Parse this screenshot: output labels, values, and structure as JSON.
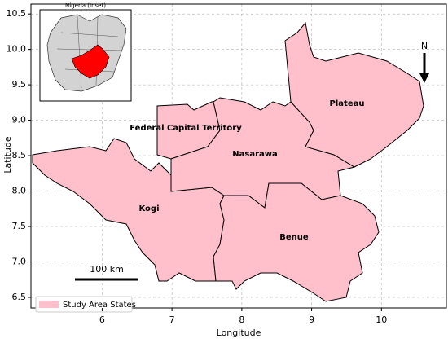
{
  "chart_data": {
    "type": "map",
    "xlabel": "Longitude",
    "ylabel": "Latitude",
    "xlim": [
      4.98,
      10.93
    ],
    "ylim": [
      6.35,
      10.64
    ],
    "xticks": [
      6,
      7,
      8,
      9,
      10
    ],
    "yticks": [
      {
        "value": 6.5,
        "label": "6.5"
      },
      {
        "value": 7,
        "label": "7.0"
      },
      {
        "value": 7.5,
        "label": "7.5"
      },
      {
        "value": 8,
        "label": "8.0"
      },
      {
        "value": 8.5,
        "label": "8.5"
      },
      {
        "value": 9,
        "label": "9.0"
      },
      {
        "value": 9.5,
        "label": "9.5"
      },
      {
        "value": 10,
        "label": "10.0"
      },
      {
        "value": 10.5,
        "label": "10.5"
      }
    ],
    "grid": true,
    "states": [
      "Federal Capital Territory",
      "Nasarawa",
      "Plateau",
      "Kogi",
      "Benue"
    ],
    "color": "#ffc0cb",
    "legend": "Study Area States",
    "legend_position": "lower left",
    "inset_title": "Nigeria (Inset)",
    "scale_bar": "100 km",
    "north_arrow": "N"
  }
}
